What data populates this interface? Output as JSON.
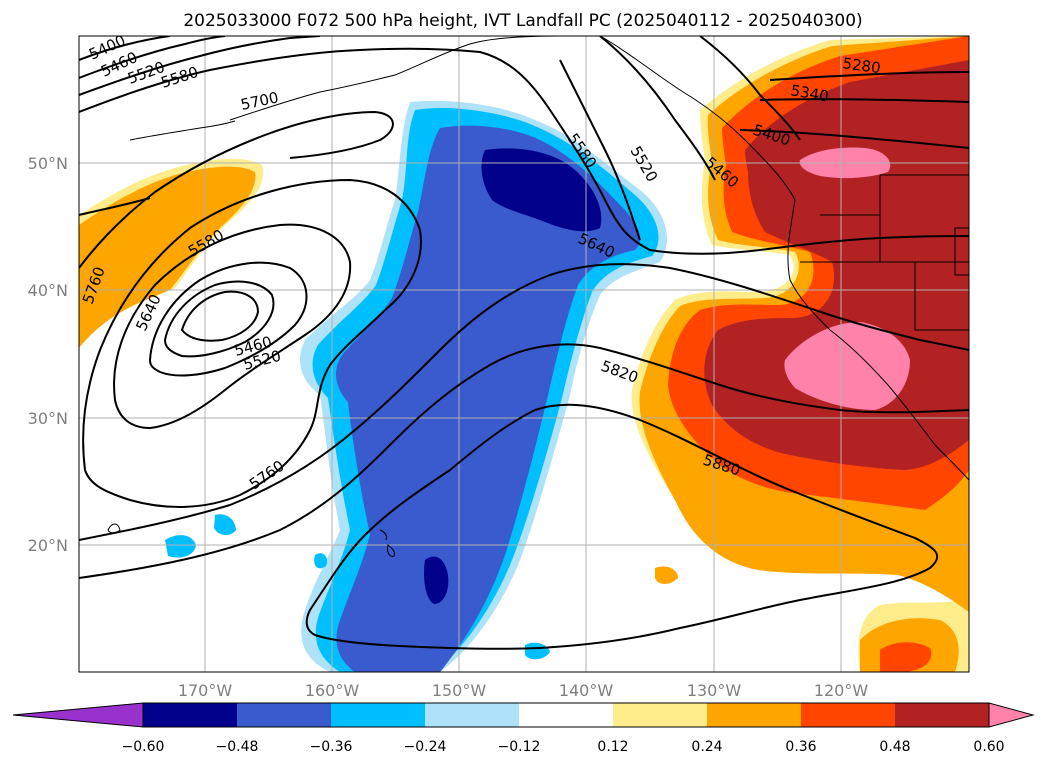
{
  "title": "2025033000 F072 500 hPa height, IVT Landfall PC (2025040112 - 2025040300)",
  "lon_labels": [
    "170°W",
    "160°W",
    "150°W",
    "140°W",
    "130°W",
    "120°W"
  ],
  "lat_labels": [
    "50°N",
    "40°N",
    "30°N",
    "20°N"
  ],
  "colorbar": {
    "colors": [
      "#9932cc",
      "#00008b",
      "#3a5bcd",
      "#00bfff",
      "#ade2f8",
      "#ffffff",
      "#ffec8b",
      "#ffa500",
      "#ff4500",
      "#b22222",
      "#ff82ab"
    ],
    "labels": [
      "−0.60",
      "−0.48",
      "−0.36",
      "−0.24",
      "−0.12",
      "0.12",
      "0.24",
      "0.36",
      "0.48",
      "0.60"
    ]
  },
  "contour_labels": [
    "5400",
    "5460",
    "5520",
    "5580",
    "5700",
    "5760",
    "5640",
    "5580",
    "5460",
    "5520",
    "5760",
    "5580",
    "5520",
    "5460",
    "5280",
    "5340",
    "5400",
    "5640",
    "5820",
    "5880"
  ]
}
